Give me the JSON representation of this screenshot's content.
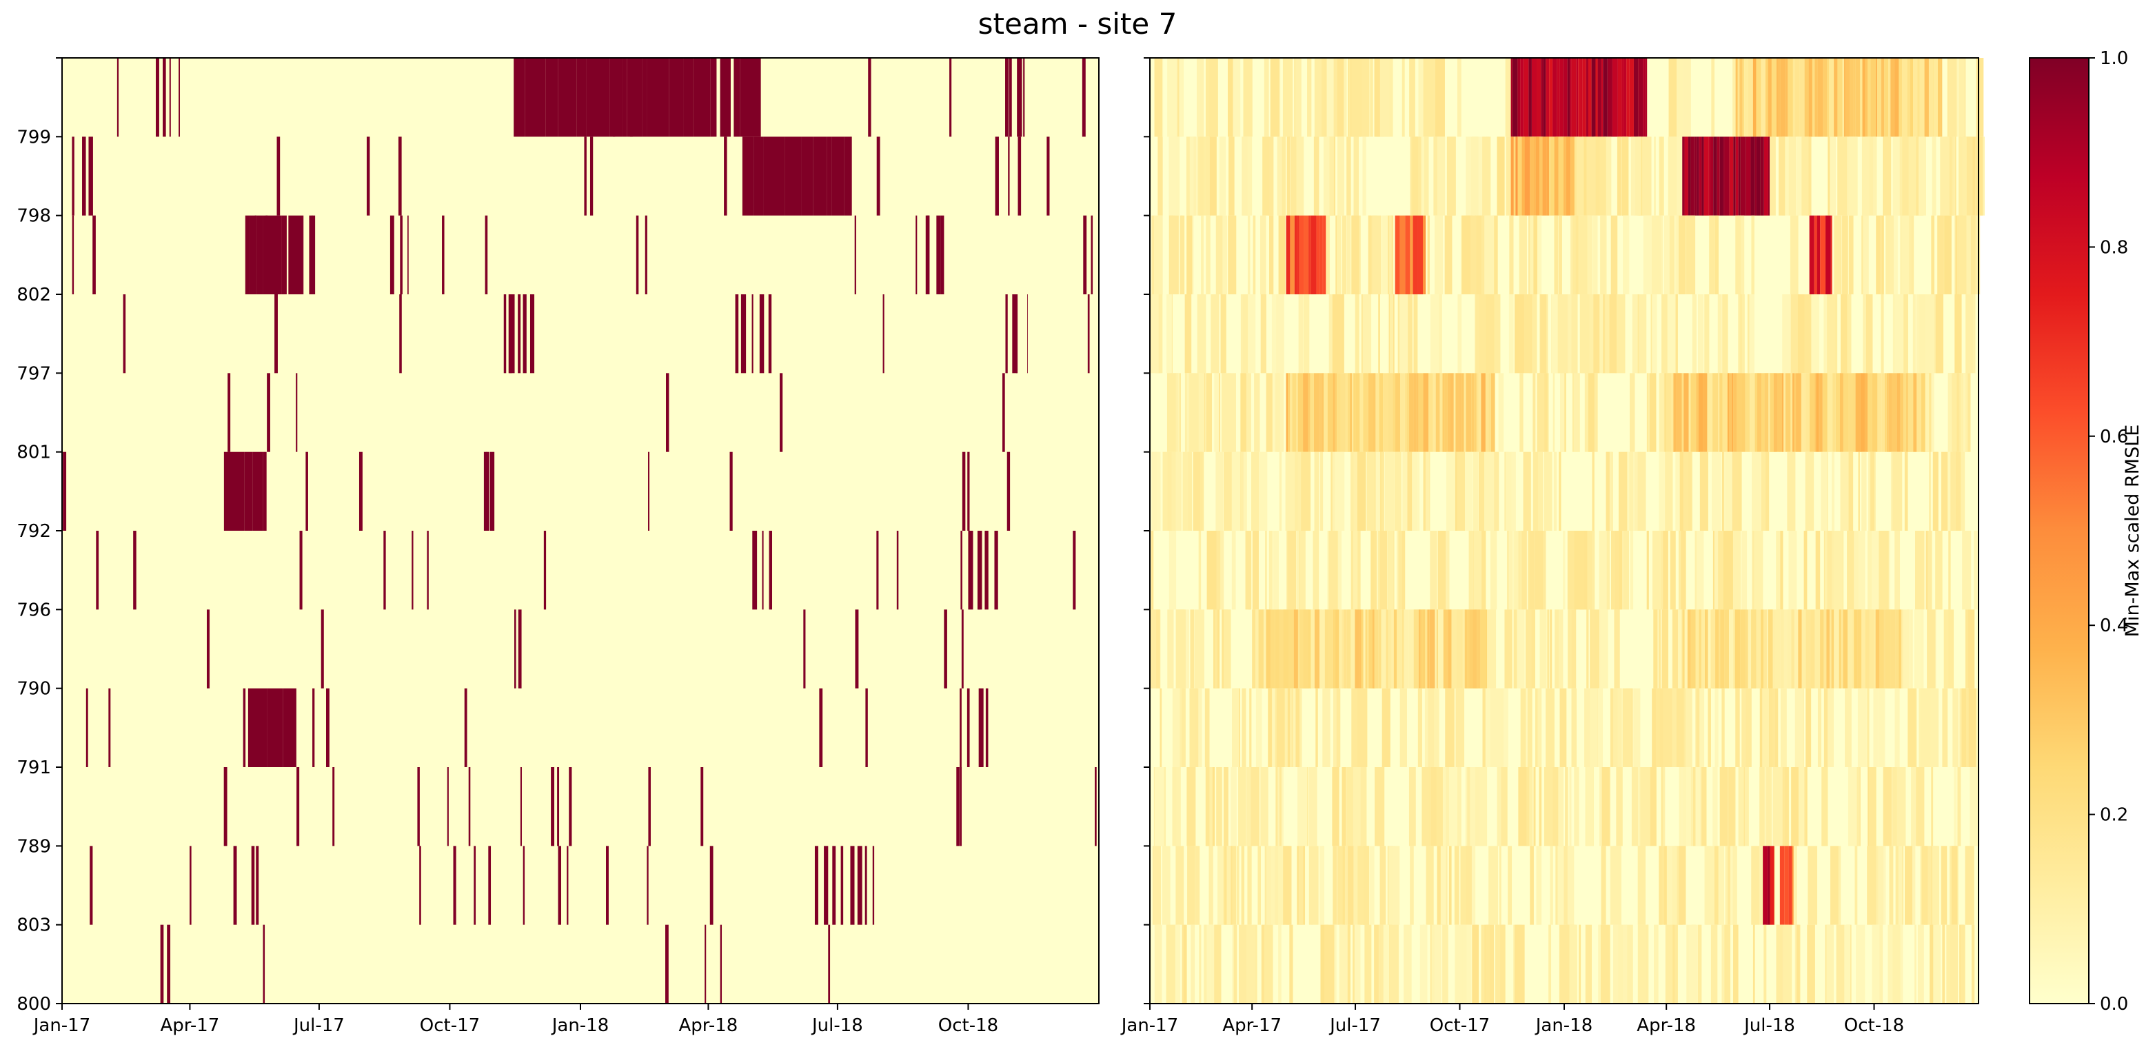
{
  "title": "steam - site 7",
  "colorbar": {
    "label": "Min-Max scaled RMSLE",
    "ticks": [
      "0.0",
      "0.2",
      "0.4",
      "0.6",
      "0.8",
      "1.0"
    ],
    "range": [
      0,
      1
    ]
  },
  "colormap": [
    "#ffffcc",
    "#fed976",
    "#feb24c",
    "#fd8d3c",
    "#fc4e2a",
    "#e31a1c",
    "#bd0026",
    "#800026"
  ],
  "chart_data": [
    {
      "type": "heatmap",
      "title": "",
      "xlabel": "",
      "ylabel": "",
      "x_ticks": [
        "Jan-17",
        "Apr-17",
        "Jul-17",
        "Oct-17",
        "Jan-18",
        "Apr-18",
        "Jul-18",
        "Oct-18"
      ],
      "x_range": [
        "2017-01-01",
        "2019-01-01"
      ],
      "rows": [
        "799",
        "798",
        "802",
        "797",
        "801",
        "792",
        "796",
        "790",
        "791",
        "789",
        "803",
        "800"
      ],
      "row_labels_shown": [
        "799",
        "798",
        "802",
        "797",
        "801",
        "792",
        "796",
        "790",
        "791",
        "789",
        "803",
        "800"
      ],
      "cell_values": "binary (0 or 1)",
      "high_intervals": [
        {
          "row": "799",
          "start": "2017-11-15",
          "end": "2018-05-08",
          "value": 1
        },
        {
          "row": "799",
          "start": "2017-03-08",
          "end": "2017-03-25",
          "value": 1
        },
        {
          "row": "799",
          "start": "2018-10-27",
          "end": "2018-11-10",
          "value": 1
        },
        {
          "row": "798",
          "start": "2018-04-25",
          "end": "2018-07-10",
          "value": 1
        },
        {
          "row": "798",
          "start": "2017-01-08",
          "end": "2017-01-25",
          "value": 1
        },
        {
          "row": "798",
          "start": "2018-10-20",
          "end": "2018-11-10",
          "value": 1
        },
        {
          "row": "802",
          "start": "2017-05-10",
          "end": "2017-06-20",
          "value": 1
        },
        {
          "row": "802",
          "start": "2017-08-20",
          "end": "2017-09-02",
          "value": 1
        },
        {
          "row": "802",
          "start": "2018-08-25",
          "end": "2018-09-15",
          "value": 1
        },
        {
          "row": "797",
          "start": "2017-11-08",
          "end": "2017-11-30",
          "value": 1
        },
        {
          "row": "797",
          "start": "2018-04-20",
          "end": "2018-05-18",
          "value": 1
        },
        {
          "row": "797",
          "start": "2018-11-01",
          "end": "2018-11-12",
          "value": 1
        },
        {
          "row": "792",
          "start": "2017-04-25",
          "end": "2017-05-25",
          "value": 1
        },
        {
          "row": "792",
          "start": "2017-10-25",
          "end": "2017-11-05",
          "value": 1
        },
        {
          "row": "796",
          "start": "2018-05-02",
          "end": "2018-05-20",
          "value": 1
        },
        {
          "row": "796",
          "start": "2018-10-01",
          "end": "2018-10-22",
          "value": 1
        },
        {
          "row": "791",
          "start": "2017-05-12",
          "end": "2017-06-15",
          "value": 1
        },
        {
          "row": "791",
          "start": "2018-09-25",
          "end": "2018-10-18",
          "value": 1
        },
        {
          "row": "803",
          "start": "2018-06-15",
          "end": "2018-07-05",
          "value": 1
        },
        {
          "row": "803",
          "start": "2018-07-10",
          "end": "2018-07-28",
          "value": 1
        }
      ]
    },
    {
      "type": "heatmap",
      "title": "",
      "xlabel": "",
      "ylabel": "",
      "x_ticks": [
        "Jan-17",
        "Apr-17",
        "Jul-17",
        "Oct-17",
        "Jan-18",
        "Apr-18",
        "Jul-18",
        "Oct-18"
      ],
      "x_range": [
        "2017-01-01",
        "2019-01-01"
      ],
      "rows": [
        "799",
        "798",
        "802",
        "797",
        "801",
        "792",
        "796",
        "790",
        "791",
        "789",
        "803",
        "800"
      ],
      "row_labels_shown": [],
      "colorbar_label": "Min-Max scaled RMSLE",
      "value_range": [
        0,
        1
      ],
      "high_intervals": [
        {
          "row": "799",
          "start": "2017-11-15",
          "end": "2018-03-15",
          "value": 0.9
        },
        {
          "row": "799",
          "start": "2018-06-01",
          "end": "2018-11-30",
          "value": 0.25
        },
        {
          "row": "798",
          "start": "2018-04-15",
          "end": "2018-07-01",
          "value": 0.95
        },
        {
          "row": "798",
          "start": "2017-11-15",
          "end": "2018-01-10",
          "value": 0.35
        },
        {
          "row": "802",
          "start": "2017-05-01",
          "end": "2017-06-05",
          "value": 0.6
        },
        {
          "row": "802",
          "start": "2017-08-05",
          "end": "2017-09-01",
          "value": 0.55
        },
        {
          "row": "802",
          "start": "2018-08-05",
          "end": "2018-08-25",
          "value": 0.75
        },
        {
          "row": "801",
          "start": "2017-05-01",
          "end": "2017-11-01",
          "value": 0.25
        },
        {
          "row": "801",
          "start": "2018-04-01",
          "end": "2018-11-15",
          "value": 0.25
        },
        {
          "row": "790",
          "start": "2017-04-01",
          "end": "2017-10-25",
          "value": 0.2
        },
        {
          "row": "790",
          "start": "2018-04-15",
          "end": "2018-10-25",
          "value": 0.18
        },
        {
          "row": "803",
          "start": "2018-06-25",
          "end": "2018-07-05",
          "value": 0.85
        },
        {
          "row": "803",
          "start": "2018-07-10",
          "end": "2018-07-22",
          "value": 0.55
        }
      ]
    }
  ]
}
